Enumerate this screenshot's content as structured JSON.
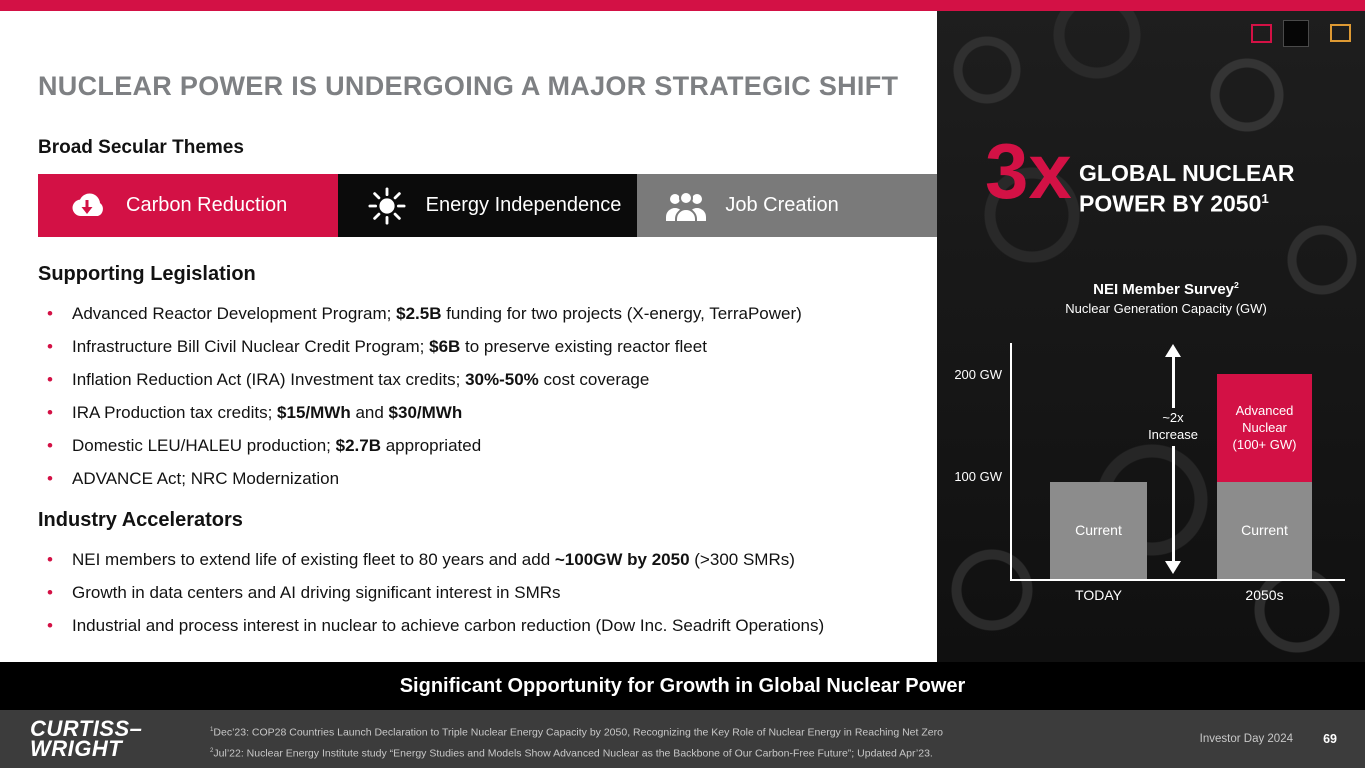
{
  "colors": {
    "accent": "#D31145",
    "banner_black": "#0B0B0B",
    "banner_gray": "#7A7A7A",
    "bar_gray": "#8C8C8C",
    "footer_bg": "#3C3C3C"
  },
  "main": {
    "title": "NUCLEAR POWER IS UNDERGOING A MAJOR STRATEGIC SHIFT",
    "themes_heading": "Broad Secular Themes",
    "themes": [
      {
        "label": "Carbon Reduction",
        "icon": "cloud-down-arrow-icon"
      },
      {
        "label": "Energy Independence",
        "icon": "sun-icon"
      },
      {
        "label": "Job Creation",
        "icon": "people-icon"
      }
    ],
    "legislation": {
      "heading": "Supporting Legislation",
      "bullets": [
        {
          "pre": "Advanced Reactor Development Program; ",
          "b1": "$2.5B",
          "mid": " funding for two projects (X-energy, TerraPower)",
          "b2": "",
          "post": ""
        },
        {
          "pre": "Infrastructure Bill Civil Nuclear Credit Program; ",
          "b1": "$6B",
          "mid": " to preserve existing reactor fleet",
          "b2": "",
          "post": ""
        },
        {
          "pre": "Inflation Reduction Act (IRA) Investment tax credits; ",
          "b1": "30%-50%",
          "mid": " cost coverage",
          "b2": "",
          "post": ""
        },
        {
          "pre": "IRA Production tax credits; ",
          "b1": "$15/MWh",
          "mid": " and ",
          "b2": "$30/MWh",
          "post": ""
        },
        {
          "pre": "Domestic LEU/HALEU production; ",
          "b1": "$2.7B",
          "mid": " appropriated",
          "b2": "",
          "post": ""
        },
        {
          "pre": "ADVANCE Act; NRC Modernization",
          "b1": "",
          "mid": "",
          "b2": "",
          "post": ""
        }
      ]
    },
    "accelerators": {
      "heading": "Industry Accelerators",
      "bullets": [
        {
          "pre": "NEI members to extend life of existing fleet to 80 years and add ",
          "b1": "~100GW by 2050",
          "mid": " (>300 SMRs)",
          "b2": "",
          "post": ""
        },
        {
          "pre": "Growth in data centers and AI driving significant interest in SMRs",
          "b1": "",
          "mid": "",
          "b2": "",
          "post": ""
        },
        {
          "pre": "Industrial and process interest in nuclear to achieve carbon reduction (Dow Inc. Seadrift Operations)",
          "b1": "",
          "mid": "",
          "b2": "",
          "post": ""
        }
      ]
    }
  },
  "panel": {
    "multiplier": "3x",
    "headline_line1": "GLOBAL NUCLEAR",
    "headline_line2": "POWER BY 2050",
    "headline_sup": "1"
  },
  "chart_data": {
    "type": "bar",
    "stacked": true,
    "title": "NEI Member Survey",
    "title_sup": "2",
    "subtitle": "Nuclear Generation Capacity (GW)",
    "categories": [
      "TODAY",
      "2050s"
    ],
    "series": [
      {
        "name": "Current",
        "color": "#8C8C8C",
        "values": [
          95,
          95
        ]
      },
      {
        "name": "Advanced Nuclear (100+ GW)",
        "color": "#D31145",
        "values": [
          0,
          105
        ]
      }
    ],
    "bar_labels": {
      "future_advanced_line1": "Advanced",
      "future_advanced_line2": "Nuclear",
      "future_advanced_line3": "(100+ GW)"
    },
    "yticks": [
      {
        "label": "200 GW",
        "value": 200
      },
      {
        "label": "100 GW",
        "value": 100
      }
    ],
    "ylim": [
      0,
      230
    ],
    "annotation_line1": "~2x",
    "annotation_line2": "Increase",
    "grid": false,
    "legend_position": "none"
  },
  "band": {
    "text": "Significant Opportunity for Growth in Global Nuclear Power"
  },
  "footer": {
    "logo_line1": "CURTISS–",
    "logo_line2": "WRIGHT",
    "footnotes": [
      {
        "sup": "1",
        "text": "Dec’23: COP28 Countries Launch Declaration to Triple Nuclear Energy Capacity by 2050, Recognizing the Key Role of Nuclear Energy in Reaching Net Zero"
      },
      {
        "sup": "2",
        "text": "Jul’22: Nuclear Energy Institute study “Energy Studies and Models Show Advanced Nuclear as the Backbone of Our Carbon-Free Future”; Updated Apr’23."
      }
    ],
    "event": "Investor Day 2024",
    "page": "69"
  }
}
